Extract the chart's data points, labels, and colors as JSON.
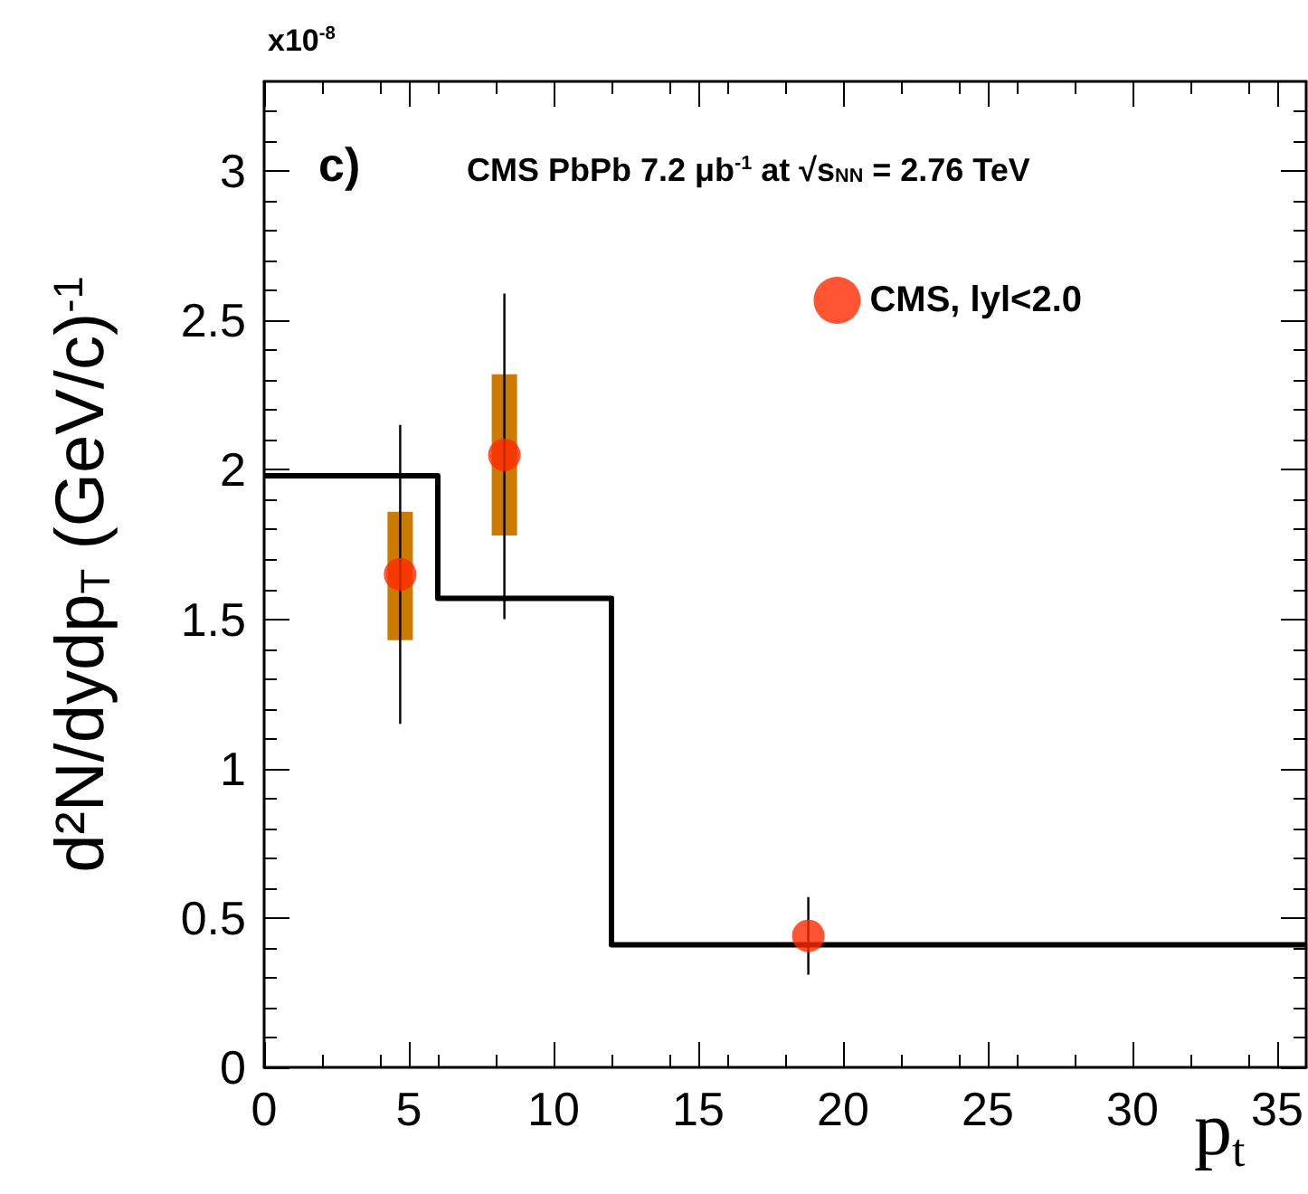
{
  "chart_data": {
    "type": "scatter",
    "title": "CMS PbPb 7.2 μb$^{-1}$ at √s$_{NN}$ = 2.76 TeV",
    "xlabel": "p$_{t}$",
    "ylabel": "d²N/dydp$_{T}$ (GeV/c)$^{-1}$",
    "annotations": [
      "c)",
      "x10$^{-8}$"
    ],
    "xlim": [
      0,
      36
    ],
    "xticks": [
      0,
      5,
      10,
      15,
      20,
      25,
      30,
      35
    ],
    "ylim": [
      0,
      3.3
    ],
    "yticks": [
      0,
      0.5,
      1,
      1.5,
      2,
      2.5,
      3
    ],
    "grid": false,
    "legend": "top right",
    "series": [
      {
        "type": "bar",
        "color": "#cc7a00",
        "x": [
          4.7,
          8.3
        ],
        "base": [
          1.43,
          1.78
        ],
        "values": [
          0.43,
          0.54
        ]
      },
      {
        "name": "CMS, lyl<2.0",
        "color": "#ff2a00",
        "marker": "circle",
        "x": [
          4.7,
          8.3,
          18.8
        ],
        "values": [
          1.65,
          2.05,
          0.44
        ],
        "errors": [
          [
            1.15,
            2.15
          ],
          [
            1.5,
            2.59
          ],
          [
            0.31,
            0.57
          ]
        ]
      },
      {
        "type": "step",
        "color": "#000000",
        "marker": "none",
        "x": [
          0,
          6,
          12,
          36
        ],
        "values": [
          1.98,
          1.57,
          0.41,
          0.41
        ]
      }
    ]
  }
}
